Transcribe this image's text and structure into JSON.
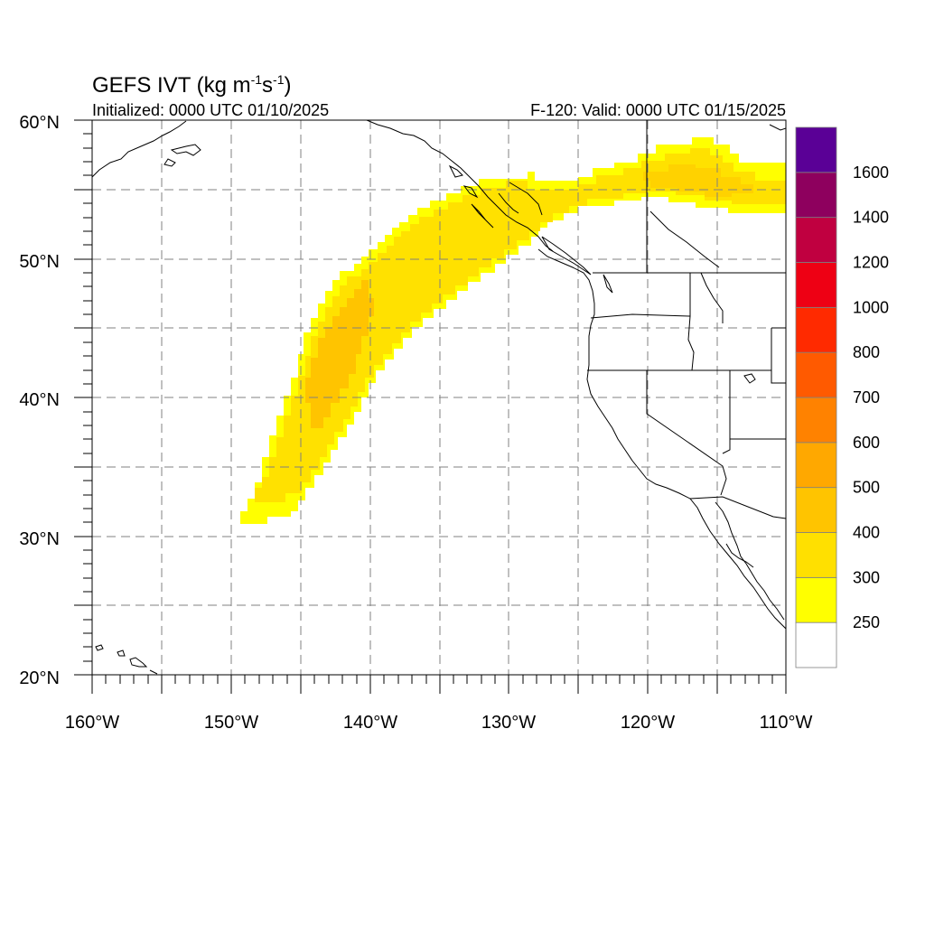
{
  "map": {
    "title_main": "GEFS IVT (kg m",
    "title_exp1": "-1",
    "title_mid": "s",
    "title_exp2": "-1",
    "title_end": ")",
    "initialized": "Initialized: 0000 UTC 01/10/2025",
    "valid": "F-120: Valid: 0000 UTC 01/15/2025",
    "lon_range": [
      -160,
      -110
    ],
    "lat_range": [
      20,
      60
    ],
    "lon_ticks": [
      "160°W",
      "150°W",
      "140°W",
      "130°W",
      "120°W",
      "110°W"
    ],
    "lat_ticks": [
      "20°N",
      "30°N",
      "40°N",
      "50°N",
      "60°N"
    ]
  },
  "colorbar": {
    "labels": [
      "250",
      "300",
      "400",
      "500",
      "600",
      "700",
      "800",
      "1000",
      "1200",
      "1400",
      "1600"
    ],
    "colors": [
      "#ffffff",
      "#ffff00",
      "#ffe000",
      "#ffc400",
      "#ffa800",
      "#ff8200",
      "#ff5a00",
      "#ff2a00",
      "#ee0014",
      "#c00040",
      "#8e005e",
      "#5a0096"
    ]
  },
  "legend_colors": {
    "coastline": "#000000",
    "grid": "#808080"
  }
}
